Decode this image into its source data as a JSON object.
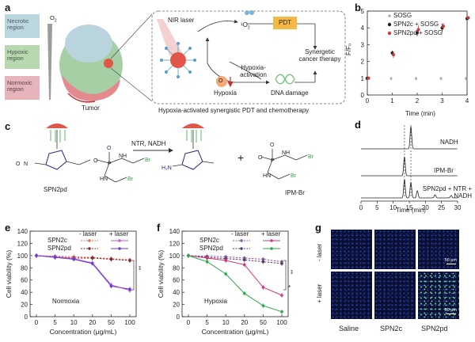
{
  "panels": {
    "a": "a",
    "b": "b",
    "c": "c",
    "d": "d",
    "e": "e",
    "f": "f",
    "g": "g"
  },
  "panel_a": {
    "regions": [
      "Necrotic region",
      "Hypoxic region",
      "Normoxic region"
    ],
    "o2_label": "O",
    "o2_sub": "2",
    "tumor_label": "Tumor",
    "nir_label": "NIR laser",
    "singlet_label": "¹O",
    "singlet_sub": "2",
    "pdt_label": "PDT",
    "o2_circle": "O",
    "hypoxia_label": "Hypoxia",
    "activation_label": "Hypoxia- activation",
    "dna_label": "DNA damage",
    "synergetic_label": "Synergetic cancer therapy",
    "caption": "Hypoxia-activated synergistic PDT and chemotherapy",
    "colors": {
      "necrotic": "#b9d7dd",
      "hypoxic": "#b8d8b0",
      "normoxic": "#e8b4bc",
      "pdt_box": "#f4b845",
      "nanoparticle": "#e0574a"
    }
  },
  "panel_b": {
    "ylabel": "F/F₀",
    "xlabel": "Time (min)",
    "legend": [
      "SOSG",
      "SPN2c + SOSG",
      "SPN2pd + SOSG"
    ]
  },
  "panel_c": {
    "reagent": "NTR, NADH",
    "plus": "+",
    "spn2pd_label": "SPN2pd",
    "ipmbr_label": "IPM-Br"
  },
  "panel_d": {
    "traces": [
      "NADH",
      "IPM-Br",
      "SPN2pd + NTR + NADH"
    ],
    "xlabel": "Time (min)"
  },
  "panel_e": {
    "condition": "Normoxia",
    "significance": "**"
  },
  "panel_f": {
    "condition": "Hypoxia",
    "significance_top": "**",
    "significance_bottom": "*"
  },
  "legend_ef": {
    "minus_laser": "- laser",
    "plus_laser": "+ laser",
    "spn2c": "SPN2c",
    "spn2pd": "SPN2pd"
  },
  "panel_g": {
    "row_labels": [
      "- laser",
      "+ laser"
    ],
    "col_labels": [
      "Saline",
      "SPN2c",
      "SPN2pd"
    ],
    "scale": "50 μm"
  },
  "chart_data": [
    {
      "id": "b",
      "type": "scatter",
      "title": "",
      "xlabel": "Time (min)",
      "ylabel": "F/F₀",
      "xlim": [
        0,
        4
      ],
      "ylim": [
        0,
        5
      ],
      "x_ticks": [
        0,
        1,
        2,
        3,
        4
      ],
      "y_ticks": [
        0,
        1,
        2,
        3,
        4,
        5
      ],
      "x": [
        0,
        1,
        2,
        3,
        4
      ],
      "series": [
        {
          "name": "SOSG",
          "color": "#8e96a8",
          "values": [
            1.0,
            1.0,
            1.0,
            1.0,
            1.0
          ],
          "err": [
            0.05,
            0.08,
            0.08,
            0.08,
            0.08
          ]
        },
        {
          "name": "SPN2c + SOSG",
          "color": "#222222",
          "values": [
            1.0,
            2.5,
            3.7,
            4.0,
            4.55
          ],
          "err": [
            0.05,
            0.15,
            0.2,
            0.25,
            0.12
          ]
        },
        {
          "name": "SPN2pd + SOSG",
          "color": "#d23a3a",
          "values": [
            1.0,
            2.4,
            3.9,
            4.1,
            4.6
          ],
          "err": [
            0.05,
            0.2,
            0.25,
            0.2,
            0.1
          ]
        }
      ]
    },
    {
      "id": "d",
      "type": "line",
      "title": "",
      "xlabel": "Time (min)",
      "xlim": [
        0,
        30
      ],
      "x_ticks": [
        0,
        5,
        10,
        15,
        20,
        25,
        30
      ],
      "series": [
        {
          "name": "NADH",
          "peaks": [
            {
              "t": 15.5,
              "h": 1.0
            }
          ]
        },
        {
          "name": "IPM-Br",
          "peaks": [
            {
              "t": 13.5,
              "h": 1.0
            }
          ]
        },
        {
          "name": "SPN2pd + NTR + NADH",
          "peaks": [
            {
              "t": 13.5,
              "h": 0.9
            },
            {
              "t": 15.5,
              "h": 0.75
            },
            {
              "t": 17.5,
              "h": 0.35
            },
            {
              "t": 23.0,
              "h": 0.15
            },
            {
              "t": 28.0,
              "h": 0.12
            }
          ]
        }
      ]
    },
    {
      "id": "e",
      "type": "line",
      "title": "",
      "condition": "Normoxia",
      "xlabel": "Concentration (μg/mL)",
      "ylabel": "Cell viability (%)",
      "categories": [
        "0",
        "5",
        "10",
        "20",
        "50",
        "100"
      ],
      "ylim": [
        0,
        140
      ],
      "y_ticks": [
        0,
        20,
        40,
        60,
        80,
        100,
        120,
        140
      ],
      "series": [
        {
          "name": "SPN2c - laser",
          "color": "#e86a5a",
          "dashed": true,
          "values": [
            100,
            99,
            98,
            97,
            95,
            93
          ]
        },
        {
          "name": "SPN2pd - laser",
          "color": "#7a2a2a",
          "dashed": true,
          "values": [
            100,
            98,
            96,
            96,
            94,
            92
          ]
        },
        {
          "name": "SPN2c + laser",
          "color": "#c25bd6",
          "dashed": false,
          "values": [
            100,
            98,
            95,
            88,
            52,
            43
          ]
        },
        {
          "name": "SPN2pd + laser",
          "color": "#6a3ad2",
          "dashed": false,
          "values": [
            100,
            97,
            94,
            87,
            50,
            45
          ]
        }
      ]
    },
    {
      "id": "f",
      "type": "line",
      "title": "",
      "condition": "Hypoxia",
      "xlabel": "Concentration (μg/mL)",
      "ylabel": "Cell viability (%)",
      "categories": [
        "0",
        "5",
        "10",
        "20",
        "50",
        "100"
      ],
      "ylim": [
        0,
        140
      ],
      "y_ticks": [
        0,
        20,
        40,
        60,
        80,
        100,
        120,
        140
      ],
      "series": [
        {
          "name": "SPN2c - laser",
          "color": "#8a5a9a",
          "dashed": true,
          "values": [
            100,
            99,
            98,
            96,
            94,
            90
          ]
        },
        {
          "name": "SPN2pd - laser",
          "color": "#5a3a6a",
          "dashed": true,
          "values": [
            100,
            97,
            95,
            93,
            90,
            87
          ]
        },
        {
          "name": "SPN2c + laser",
          "color": "#d2357a",
          "dashed": false,
          "values": [
            100,
            96,
            92,
            85,
            48,
            35
          ]
        },
        {
          "name": "SPN2pd + laser",
          "color": "#2ea84a",
          "dashed": false,
          "values": [
            100,
            90,
            70,
            38,
            18,
            8
          ]
        }
      ]
    }
  ]
}
